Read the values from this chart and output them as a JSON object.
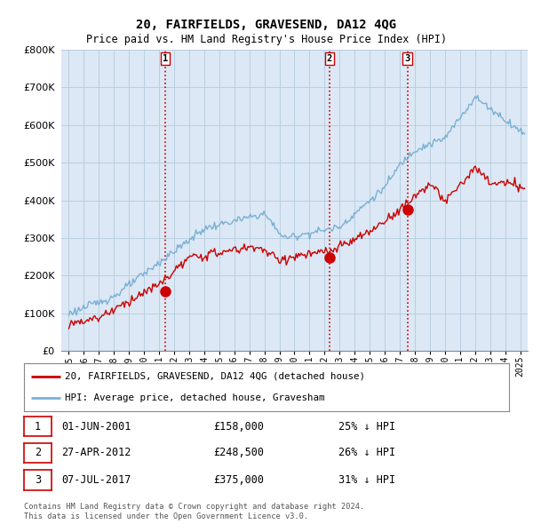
{
  "title": "20, FAIRFIELDS, GRAVESEND, DA12 4QG",
  "subtitle": "Price paid vs. HM Land Registry's House Price Index (HPI)",
  "ylim": [
    0,
    800000
  ],
  "yticks": [
    0,
    100000,
    200000,
    300000,
    400000,
    500000,
    600000,
    700000,
    800000
  ],
  "background_color": "#ffffff",
  "chart_bg_color": "#dce8f5",
  "grid_color": "#b8cfe0",
  "sale_color": "#cc0000",
  "hpi_color": "#7ab0d4",
  "vline_color": "#cc0000",
  "transactions": [
    {
      "date_num": 2001.42,
      "price": 158000,
      "label": "1"
    },
    {
      "date_num": 2012.32,
      "price": 248500,
      "label": "2"
    },
    {
      "date_num": 2017.51,
      "price": 375000,
      "label": "3"
    }
  ],
  "transaction_dates": [
    "01-JUN-2001",
    "27-APR-2012",
    "07-JUL-2017"
  ],
  "transaction_prices": [
    "£158,000",
    "£248,500",
    "£375,000"
  ],
  "transaction_hpi": [
    "25% ↓ HPI",
    "26% ↓ HPI",
    "31% ↓ HPI"
  ],
  "legend_sale_label": "20, FAIRFIELDS, GRAVESEND, DA12 4QG (detached house)",
  "legend_hpi_label": "HPI: Average price, detached house, Gravesham",
  "footer1": "Contains HM Land Registry data © Crown copyright and database right 2024.",
  "footer2": "This data is licensed under the Open Government Licence v3.0.",
  "xmin": 1994.5,
  "xmax": 2025.5,
  "xtick_years": [
    1995,
    1996,
    1997,
    1998,
    1999,
    2000,
    2001,
    2002,
    2003,
    2004,
    2005,
    2006,
    2007,
    2008,
    2009,
    2010,
    2011,
    2012,
    2013,
    2014,
    2015,
    2016,
    2017,
    2018,
    2019,
    2020,
    2021,
    2022,
    2023,
    2024,
    2025
  ]
}
